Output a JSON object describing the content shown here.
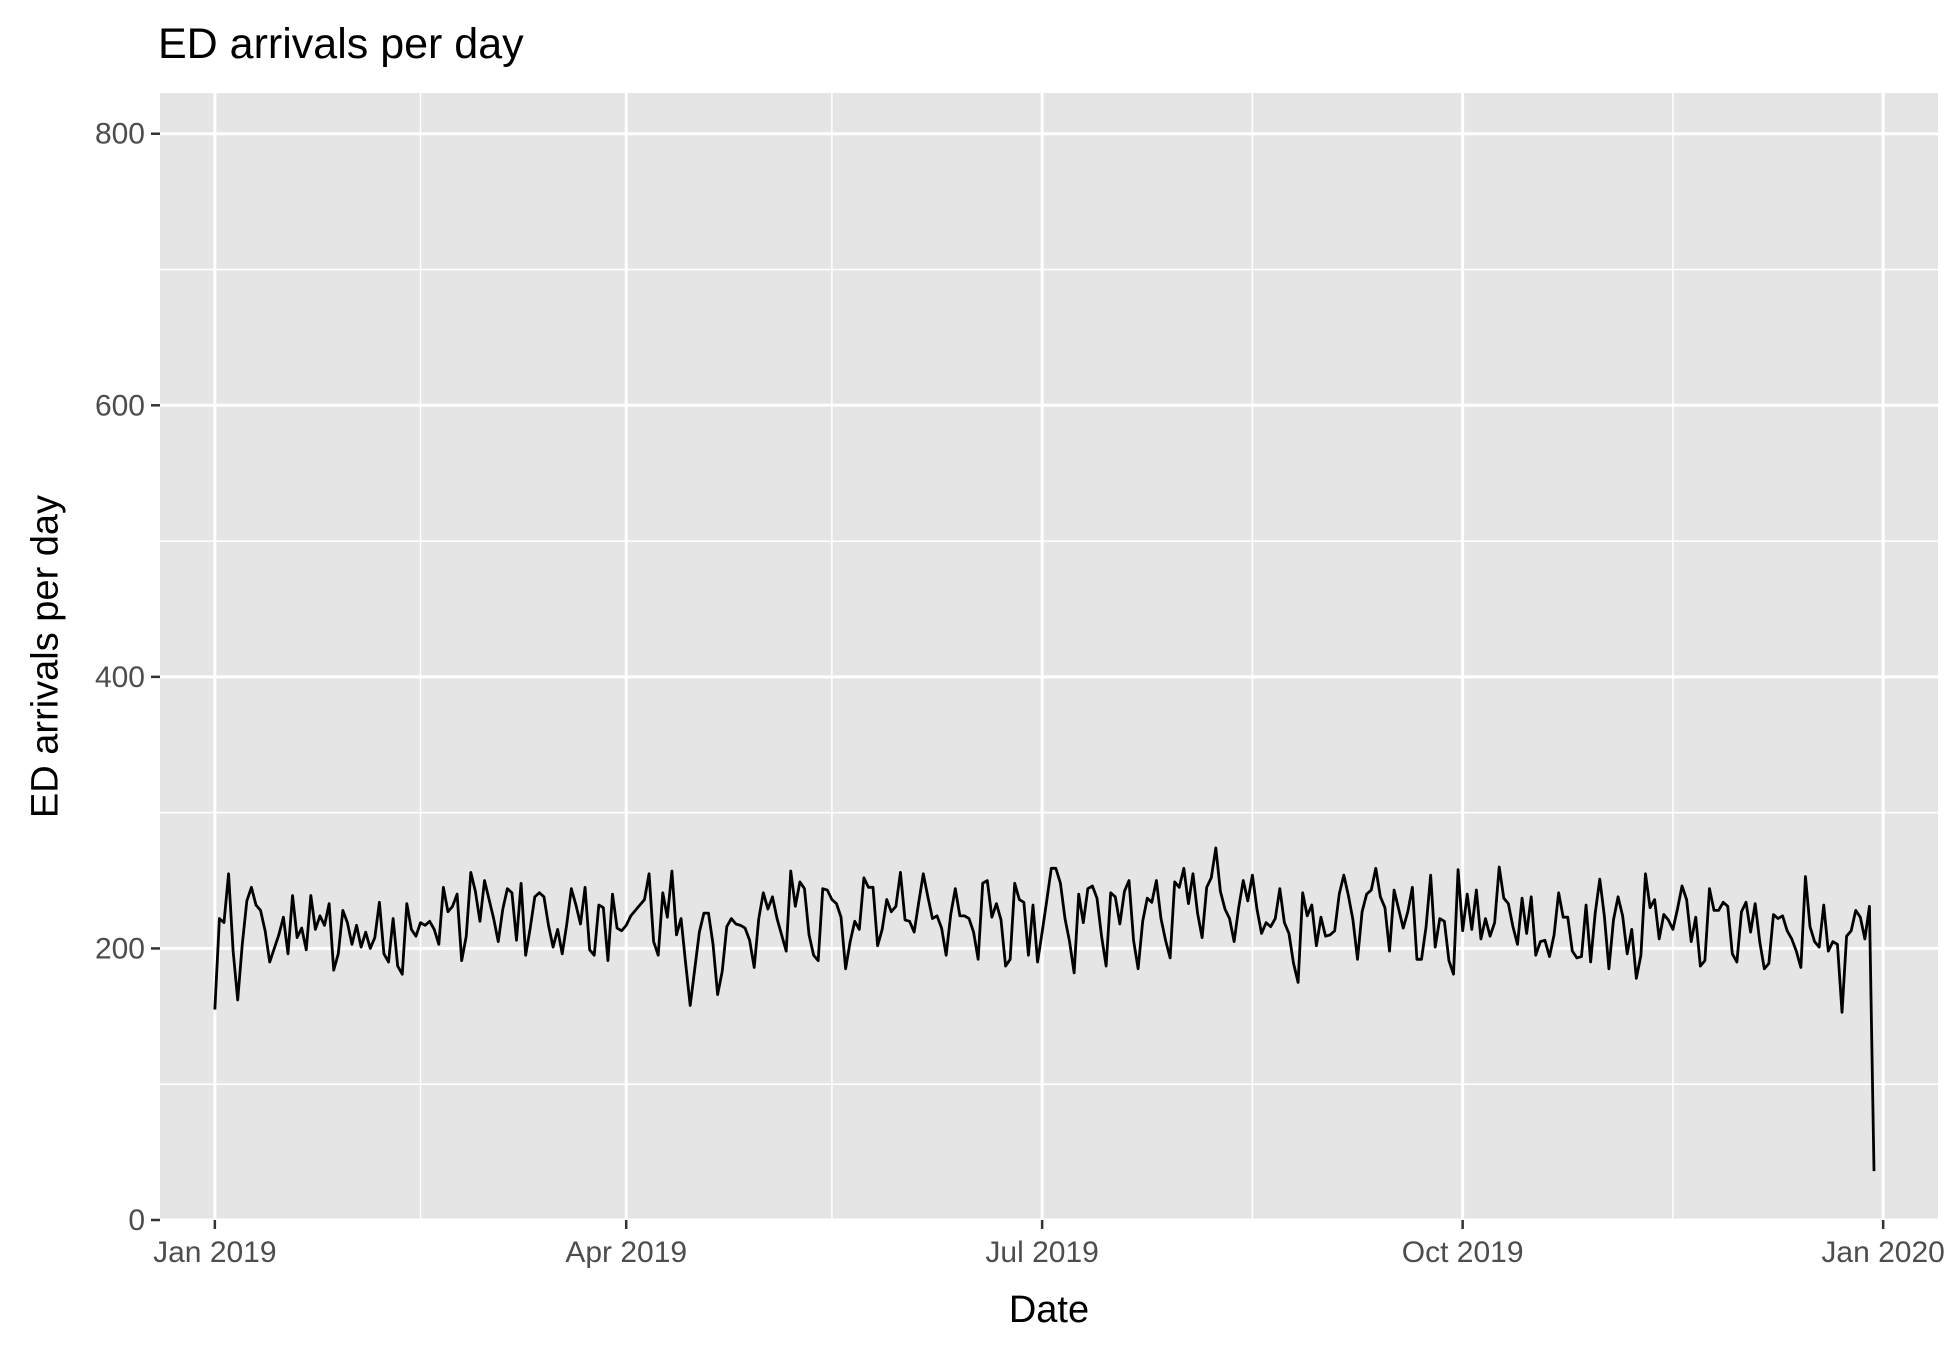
{
  "chart_data": {
    "type": "line",
    "title": "ED arrivals per day",
    "xlabel": "Date",
    "ylabel": "ED arrivals per day",
    "x_start": "2019-01-01",
    "x_end": "2020-01-01",
    "xlim": [
      "2018-12-20",
      "2020-01-13"
    ],
    "ylim": [
      0,
      830
    ],
    "x_ticks": [
      {
        "date": "2019-01-01",
        "label": "Jan 2019"
      },
      {
        "date": "2019-04-01",
        "label": "Apr 2019"
      },
      {
        "date": "2019-07-01",
        "label": "Jul 2019"
      },
      {
        "date": "2019-10-01",
        "label": "Oct 2019"
      },
      {
        "date": "2020-01-01",
        "label": "Jan 2020"
      }
    ],
    "x_minor_ticks": [
      "2019-02-15",
      "2019-05-16",
      "2019-08-16",
      "2019-11-16"
    ],
    "y_ticks": [
      0,
      200,
      400,
      600,
      800
    ],
    "y_minor_ticks": [
      100,
      300,
      500,
      700
    ],
    "grid": true,
    "colors": {
      "panel": "#e5e5e5",
      "grid": "#ffffff",
      "line": "#000000",
      "tick_text": "#4d4d4d"
    },
    "series": [
      {
        "values": [
          155,
          222,
          219,
          255,
          198,
          162,
          203,
          235,
          245,
          232,
          228,
          213,
          190,
          200,
          210,
          223,
          196,
          239,
          208,
          215,
          199,
          239,
          214,
          224,
          217,
          233,
          184,
          196,
          228,
          219,
          203,
          217,
          201,
          212,
          200,
          208,
          234,
          196,
          190,
          222,
          187,
          181,
          233,
          214,
          209,
          219,
          217,
          220,
          214,
          203,
          245,
          227,
          231,
          240,
          191,
          209,
          256,
          242,
          220,
          250,
          236,
          222,
          205,
          229,
          244,
          241,
          206,
          248,
          195,
          215,
          238,
          241,
          238,
          217,
          201,
          214,
          196,
          218,
          244,
          232,
          218,
          245,
          199,
          195,
          232,
          230,
          191,
          240,
          215,
          213,
          217,
          224,
          228,
          232,
          236,
          255,
          205,
          195,
          241,
          223,
          257,
          210,
          222,
          189,
          158,
          185,
          212,
          226,
          226,
          203,
          166,
          183,
          216,
          222,
          218,
          217,
          215,
          206,
          186,
          222,
          241,
          229,
          238,
          222,
          210,
          198,
          257,
          231,
          249,
          244,
          210,
          195,
          191,
          244,
          243,
          236,
          233,
          223,
          185,
          205,
          220,
          214,
          252,
          245,
          245,
          202,
          214,
          236,
          227,
          231,
          256,
          221,
          220,
          212,
          234,
          255,
          238,
          222,
          224,
          215,
          195,
          225,
          244,
          224,
          224,
          222,
          212,
          192,
          248,
          250,
          223,
          233,
          221,
          187,
          192,
          248,
          236,
          234,
          195,
          232,
          190,
          212,
          235,
          259,
          259,
          248,
          222,
          205,
          182,
          240,
          219,
          244,
          246,
          237,
          209,
          187,
          241,
          238,
          218,
          242,
          250,
          206,
          185,
          220,
          237,
          234,
          250,
          222,
          206,
          193,
          249,
          245,
          259,
          233,
          255,
          226,
          208,
          245,
          252,
          274,
          242,
          229,
          222,
          205,
          230,
          250,
          235,
          254,
          229,
          211,
          219,
          216,
          222,
          244,
          219,
          211,
          189,
          175,
          241,
          224,
          232,
          202,
          223,
          209,
          210,
          213,
          240,
          254,
          239,
          221,
          192,
          227,
          240,
          243,
          259,
          238,
          230,
          198,
          243,
          229,
          215,
          227,
          245,
          192,
          192,
          216,
          254,
          201,
          222,
          220,
          191,
          181,
          258,
          213,
          240,
          214,
          243,
          207,
          222,
          209,
          219,
          260,
          237,
          233,
          216,
          203,
          237,
          211,
          238,
          195,
          205,
          206,
          194,
          210,
          241,
          223,
          223,
          198,
          193,
          194,
          232,
          190,
          226,
          251,
          224,
          185,
          221,
          238,
          224,
          196,
          214,
          178,
          195,
          255,
          230,
          236,
          207,
          225,
          221,
          214,
          229,
          246,
          236,
          205,
          223,
          187,
          191,
          244,
          228,
          228,
          234,
          231,
          196,
          190,
          227,
          234,
          212,
          233,
          205,
          185,
          189,
          225,
          222,
          224,
          213,
          207,
          198,
          186,
          253,
          216,
          205,
          201,
          232,
          198,
          205,
          203,
          153,
          209,
          213,
          228,
          223,
          207,
          231,
          36
        ]
      }
    ]
  }
}
